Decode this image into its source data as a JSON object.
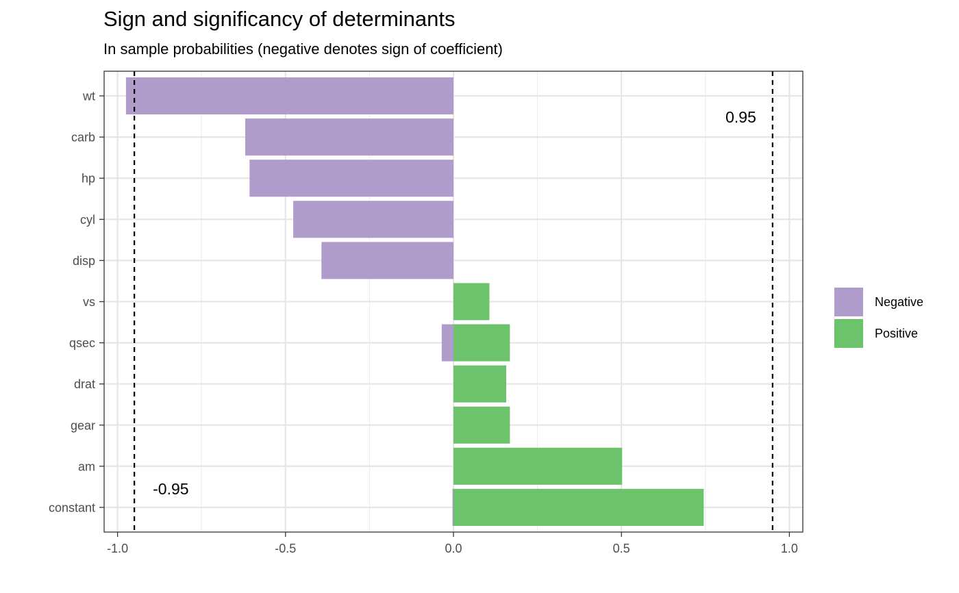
{
  "chart_data": {
    "type": "bar",
    "orientation": "horizontal",
    "stacked": true,
    "title": "Sign and significancy of determinants",
    "subtitle": "In sample probabilities (negative denotes sign of coefficient)",
    "xlabel": "",
    "ylabel": "",
    "xlim": [
      -1.04,
      1.04
    ],
    "x_ticks": [
      -1.0,
      -0.5,
      0.0,
      0.5,
      1.0
    ],
    "x_tick_labels": [
      "-1.0",
      "-0.5",
      "0.0",
      "0.5",
      "1.0"
    ],
    "categories": [
      "wt",
      "carb",
      "hp",
      "cyl",
      "disp",
      "vs",
      "qsec",
      "drat",
      "gear",
      "am",
      "constant"
    ],
    "series": [
      {
        "name": "Negative",
        "color": "#b09ccb",
        "values": [
          -0.975,
          -0.62,
          -0.607,
          -0.477,
          -0.393,
          0,
          -0.035,
          0,
          0,
          0,
          -0.003
        ]
      },
      {
        "name": "Positive",
        "color": "#6cc36b",
        "values": [
          0,
          0,
          0,
          0,
          0,
          0.107,
          0.168,
          0.157,
          0.168,
          0.502,
          0.745
        ]
      }
    ],
    "reference_lines": [
      {
        "x": -0.95,
        "label": "-0.95",
        "style": "dashed"
      },
      {
        "x": 0.95,
        "label": "0.95",
        "style": "dashed"
      }
    ],
    "legend_position": "right",
    "grid": true
  }
}
